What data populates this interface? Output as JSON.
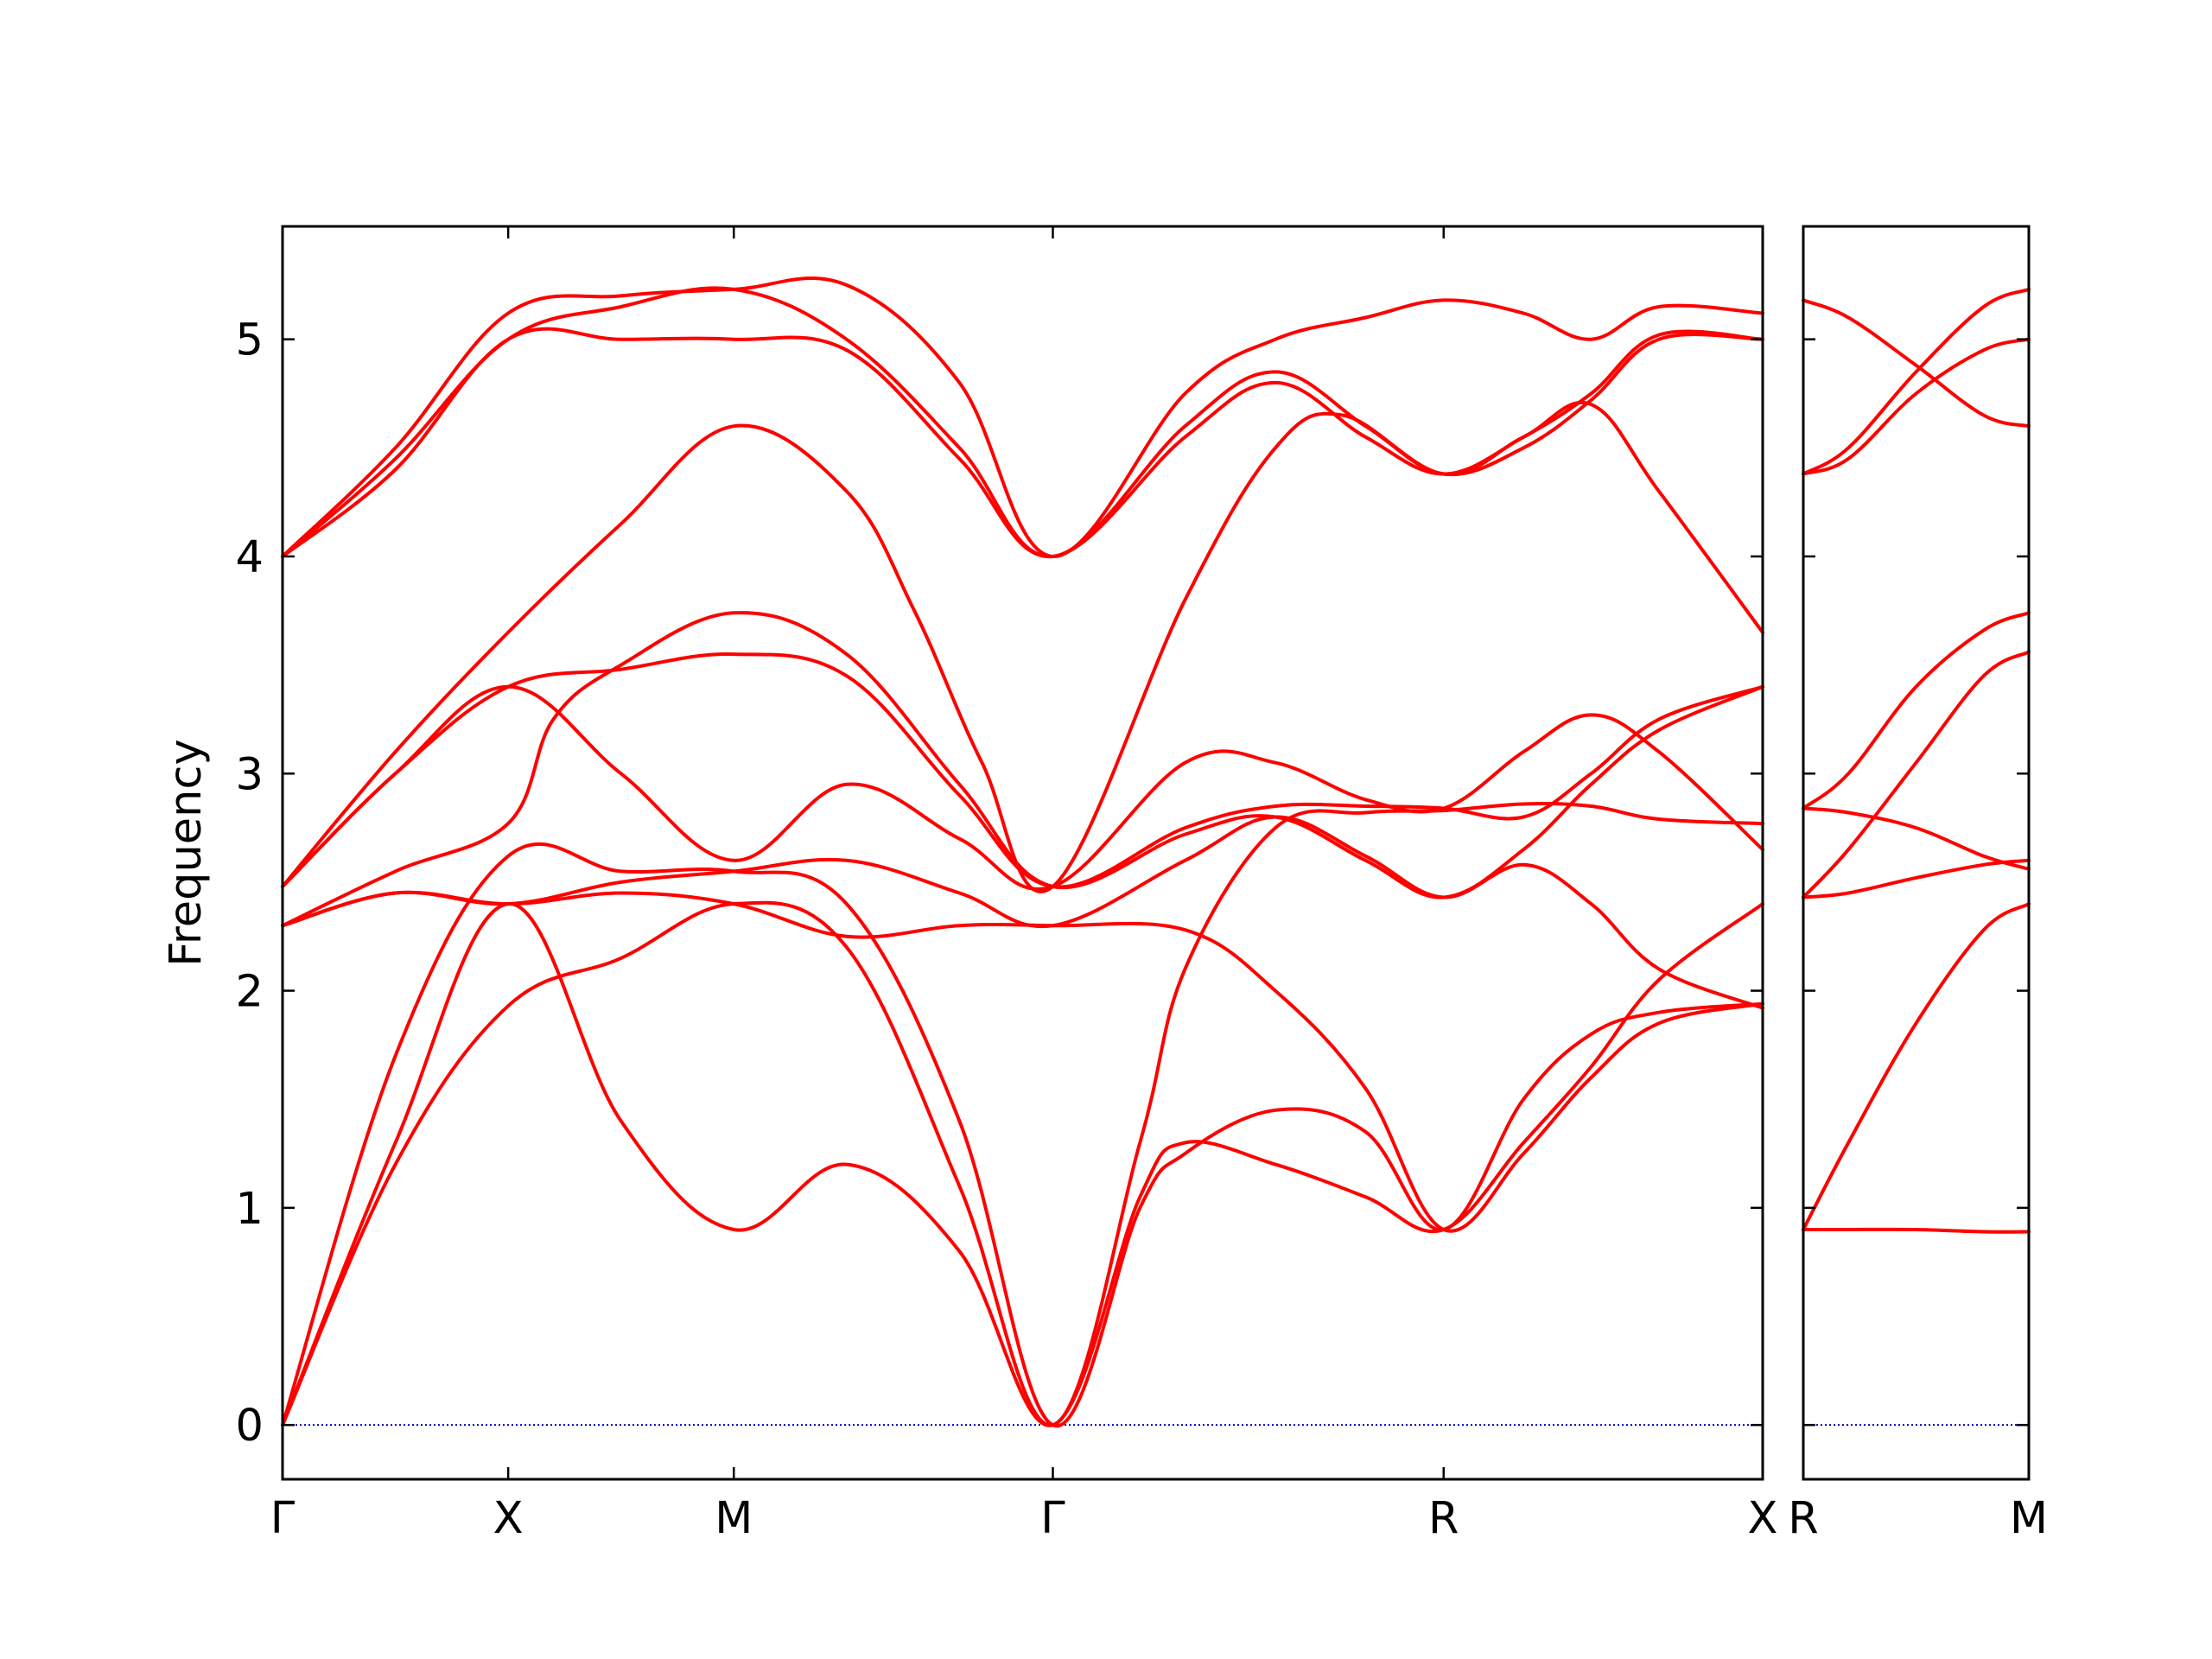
{
  "chart_data": {
    "type": "line",
    "ylabel": "Frequency",
    "ylim": [
      -0.25,
      5.52
    ],
    "yticks": [
      "0",
      "1",
      "2",
      "3",
      "4",
      "5"
    ],
    "grid": false,
    "legend": "none",
    "line_color": "#ff0000",
    "zero_line_color": "#0000cc",
    "panels": [
      {
        "xticks": [
          {
            "label": "Γ",
            "x": 0
          },
          {
            "label": "X",
            "x": 0.5
          },
          {
            "label": "M",
            "x": 1.0
          },
          {
            "label": "Γ",
            "x": 1.707
          },
          {
            "label": "R",
            "x": 2.573
          },
          {
            "label": "X",
            "x": 3.28
          }
        ],
        "xlim": [
          0,
          3.28
        ],
        "series": [
          {
            "x": [
              0,
              0.25,
              0.5,
              0.75,
              1.0,
              1.25,
              1.5,
              1.707,
              2.0,
              2.2,
              2.4,
              2.573,
              2.75,
              2.9,
              3.05,
              3.28
            ],
            "values": [
              4.0,
              4.5,
              5.12,
              5.2,
              5.23,
              5.25,
              4.8,
              4.0,
              4.75,
              5.0,
              5.1,
              5.18,
              5.12,
              5.0,
              5.15,
              5.12
            ]
          },
          {
            "x": [
              0,
              0.25,
              0.5,
              0.75,
              1.0,
              1.25,
              1.5,
              1.707,
              2.0,
              2.2,
              2.4,
              2.573,
              2.75,
              2.9,
              3.05,
              3.28
            ],
            "values": [
              4.0,
              4.45,
              5.0,
              5.15,
              5.23,
              5.0,
              4.5,
              4.0,
              4.6,
              4.85,
              4.6,
              4.38,
              4.5,
              4.72,
              5.0,
              5.0
            ]
          },
          {
            "x": [
              0,
              0.25,
              0.5,
              0.75,
              1.0,
              1.25,
              1.5,
              1.707,
              2.0,
              2.2,
              2.4,
              2.573,
              2.75,
              2.9,
              3.05,
              3.28
            ],
            "values": [
              4.0,
              4.4,
              5.0,
              5.0,
              5.0,
              4.95,
              4.45,
              4.0,
              4.55,
              4.8,
              4.55,
              4.38,
              4.55,
              4.75,
              5.02,
              5.0
            ]
          },
          {
            "x": [
              0,
              0.25,
              0.5,
              0.75,
              1.0,
              1.25,
              1.4,
              1.55,
              1.707,
              2.0,
              2.2,
              2.35,
              2.573,
              2.75,
              2.9,
              3.05,
              3.28
            ],
            "values": [
              2.48,
              3.1,
              3.65,
              4.15,
              4.6,
              4.3,
              3.75,
              3.05,
              2.48,
              3.8,
              4.5,
              4.65,
              4.38,
              4.55,
              4.7,
              4.3,
              3.65
            ]
          },
          {
            "x": [
              0,
              0.25,
              0.5,
              0.75,
              1.0,
              1.25,
              1.5,
              1.707,
              2.0,
              2.2,
              2.4,
              2.573,
              2.75,
              2.9,
              3.05,
              3.28
            ],
            "values": [
              2.48,
              3.0,
              3.4,
              3.48,
              3.55,
              3.45,
              2.9,
              2.48,
              2.75,
              2.85,
              2.85,
              2.84,
              2.8,
              3.0,
              3.25,
              3.4
            ]
          },
          {
            "x": [
              0,
              0.25,
              0.5,
              0.75,
              1.0,
              1.25,
              1.5,
              1.707,
              2.0,
              2.2,
              2.4,
              2.573,
              2.75,
              2.9,
              3.05,
              3.28
            ],
            "values": [
              2.48,
              3.0,
              3.4,
              3.0,
              2.6,
              2.95,
              2.7,
              2.48,
              3.05,
              3.05,
              2.88,
              2.84,
              3.1,
              3.27,
              3.1,
              2.65
            ]
          },
          {
            "x": [
              0,
              0.25,
              0.5,
              0.6,
              0.75,
              1.0,
              1.25,
              1.5,
              1.707,
              2.0,
              2.2,
              2.4,
              2.573,
              2.75,
              2.9,
              3.05,
              3.28
            ],
            "values": [
              2.3,
              2.55,
              2.77,
              3.25,
              3.5,
              3.74,
              3.55,
              2.95,
              2.48,
              2.72,
              2.8,
              2.6,
              2.43,
              2.65,
              2.95,
              3.2,
              3.4
            ]
          },
          {
            "x": [
              0,
              0.25,
              0.5,
              0.75,
              1.0,
              1.25,
              1.5,
              1.707,
              2.0,
              2.2,
              2.4,
              2.573,
              2.75,
              2.9,
              3.05,
              3.28
            ],
            "values": [
              2.3,
              2.45,
              2.4,
              2.5,
              2.55,
              2.6,
              2.45,
              2.3,
              2.6,
              2.8,
              2.62,
              2.43,
              2.58,
              2.4,
              2.1,
              1.92
            ]
          },
          {
            "x": [
              0,
              0.25,
              0.5,
              0.75,
              1.0,
              1.25,
              1.5,
              1.707,
              2.0,
              2.2,
              2.4,
              2.573,
              2.75,
              2.9,
              3.05,
              3.28
            ],
            "values": [
              2.3,
              2.45,
              2.4,
              2.45,
              2.4,
              2.25,
              2.3,
              2.3,
              2.28,
              2.0,
              1.55,
              0.9,
              1.25,
              1.6,
              1.85,
              1.94
            ]
          },
          {
            "x": [
              0,
              0.25,
              0.5,
              0.75,
              1.0,
              1.25,
              1.5,
              1.707,
              1.9,
              2.0,
              2.2,
              2.4,
              2.573,
              2.75,
              2.9,
              3.05,
              3.28
            ],
            "values": [
              0.0,
              1.7,
              2.62,
              2.55,
              2.55,
              2.4,
              1.4,
              0.0,
              1.0,
              1.25,
              1.45,
              1.35,
              0.9,
              1.5,
              1.8,
              1.9,
              1.94
            ]
          },
          {
            "x": [
              0,
              0.25,
              0.5,
              0.75,
              1.0,
              1.25,
              1.5,
              1.707,
              1.9,
              2.0,
              2.2,
              2.4,
              2.573,
              2.75,
              2.9,
              3.05,
              3.28
            ],
            "values": [
              0.0,
              1.2,
              1.93,
              2.15,
              2.4,
              2.2,
              1.1,
              0.0,
              1.3,
              2.1,
              2.75,
              2.82,
              2.83,
              2.86,
              2.85,
              2.79,
              2.77
            ]
          },
          {
            "x": [
              0,
              0.25,
              0.5,
              0.75,
              1.0,
              1.25,
              1.5,
              1.707,
              1.9,
              2.0,
              2.2,
              2.4,
              2.573,
              2.75,
              2.9,
              3.05,
              3.28
            ],
            "values": [
              0.0,
              1.3,
              2.4,
              1.4,
              0.9,
              1.2,
              0.8,
              0.0,
              1.05,
              1.3,
              1.2,
              1.05,
              0.9,
              1.3,
              1.65,
              2.05,
              2.4
            ]
          }
        ]
      },
      {
        "xticks": [
          {
            "label": "R",
            "x": 0
          },
          {
            "label": "M",
            "x": 0.5
          }
        ],
        "xlim": [
          0,
          0.5
        ],
        "series": [
          {
            "x": [
              0,
              0.1,
              0.25,
              0.4,
              0.5
            ],
            "values": [
              5.18,
              5.1,
              4.88,
              4.65,
              4.6
            ]
          },
          {
            "x": [
              0,
              0.1,
              0.25,
              0.4,
              0.5
            ],
            "values": [
              4.38,
              4.5,
              4.85,
              5.15,
              5.23
            ]
          },
          {
            "x": [
              0,
              0.1,
              0.25,
              0.4,
              0.5
            ],
            "values": [
              4.38,
              4.45,
              4.75,
              4.95,
              5.0
            ]
          },
          {
            "x": [
              0,
              0.1,
              0.25,
              0.4,
              0.5
            ],
            "values": [
              2.84,
              3.0,
              3.4,
              3.66,
              3.74
            ]
          },
          {
            "x": [
              0,
              0.1,
              0.25,
              0.4,
              0.5
            ],
            "values": [
              2.43,
              2.65,
              3.05,
              3.45,
              3.56
            ]
          },
          {
            "x": [
              0,
              0.1,
              0.25,
              0.4,
              0.5
            ],
            "values": [
              2.84,
              2.82,
              2.75,
              2.62,
              2.56
            ]
          },
          {
            "x": [
              0,
              0.1,
              0.25,
              0.4,
              0.5
            ],
            "values": [
              2.43,
              2.45,
              2.52,
              2.58,
              2.6
            ]
          },
          {
            "x": [
              0,
              0.1,
              0.25,
              0.4,
              0.5
            ],
            "values": [
              0.9,
              1.3,
              1.85,
              2.28,
              2.4
            ]
          },
          {
            "x": [
              0,
              0.1,
              0.25,
              0.4,
              0.5
            ],
            "values": [
              0.9,
              0.9,
              0.9,
              0.89,
              0.89
            ]
          }
        ]
      }
    ]
  }
}
